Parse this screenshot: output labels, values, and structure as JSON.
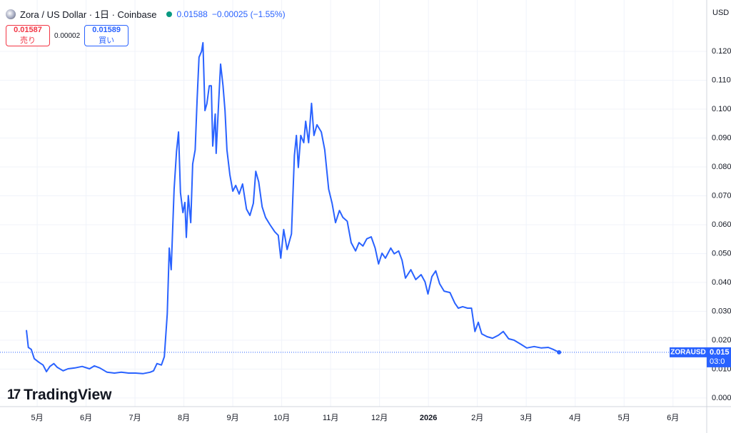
{
  "header": {
    "title": "Zora / US Dollar · 1日 · Coinbase",
    "price": "0.01588",
    "change": "−0.00025 (−1.55%)"
  },
  "trade": {
    "sell_price": "0.01587",
    "sell_label": "売り",
    "spread": "0.00002",
    "buy_price": "0.01589",
    "buy_label": "買い"
  },
  "currency": "USD",
  "price_tag": {
    "symbol": "ZORAUSD",
    "price": "0.015",
    "countdown": "03:0"
  },
  "logo": "TradingView",
  "chart_data": {
    "type": "line",
    "color": "#2962ff",
    "grid": true,
    "xlim": [
      -0.76,
      13.69
    ],
    "ylim": [
      -0.003,
      0.1378
    ],
    "xticks": [
      {
        "value": 0,
        "label": "5月"
      },
      {
        "value": 1,
        "label": "6月"
      },
      {
        "value": 2,
        "label": "7月"
      },
      {
        "value": 3,
        "label": "8月"
      },
      {
        "value": 4,
        "label": "9月"
      },
      {
        "value": 5,
        "label": "10月"
      },
      {
        "value": 6,
        "label": "11月"
      },
      {
        "value": 7,
        "label": "12月"
      },
      {
        "value": 8,
        "label": "2026"
      },
      {
        "value": 9,
        "label": "2月"
      },
      {
        "value": 10,
        "label": "3月"
      },
      {
        "value": 11,
        "label": "4月"
      },
      {
        "value": 12,
        "label": "5月"
      },
      {
        "value": 13,
        "label": "6月"
      }
    ],
    "yticks": [
      {
        "value": 0,
        "label": "0.000"
      },
      {
        "value": 0.01,
        "label": "0.010"
      },
      {
        "value": 0.02,
        "label": "0.020"
      },
      {
        "value": 0.03,
        "label": "0.030"
      },
      {
        "value": 0.04,
        "label": "0.040"
      },
      {
        "value": 0.05,
        "label": "0.050"
      },
      {
        "value": 0.06,
        "label": "0.060"
      },
      {
        "value": 0.07,
        "label": "0.070"
      },
      {
        "value": 0.08,
        "label": "0.080"
      },
      {
        "value": 0.09,
        "label": "0.090"
      },
      {
        "value": 0.1,
        "label": "0.100"
      },
      {
        "value": 0.11,
        "label": "0.110"
      },
      {
        "value": 0.12,
        "label": "0.120"
      }
    ],
    "x": [
      -0.22,
      -0.18,
      -0.12,
      -0.06,
      0.04,
      0.12,
      0.19,
      0.26,
      0.34,
      0.41,
      0.53,
      0.63,
      0.77,
      0.92,
      1.07,
      1.17,
      1.28,
      1.43,
      1.58,
      1.72,
      1.87,
      2.01,
      2.16,
      2.31,
      2.38,
      2.45,
      2.54,
      2.6,
      2.66,
      2.7,
      2.74,
      2.8,
      2.85,
      2.89,
      2.93,
      2.98,
      3.02,
      3.05,
      3.09,
      3.14,
      3.18,
      3.23,
      3.27,
      3.31,
      3.36,
      3.39,
      3.43,
      3.47,
      3.52,
      3.56,
      3.59,
      3.64,
      3.66,
      3.71,
      3.75,
      3.8,
      3.84,
      3.88,
      3.94,
      4.0,
      4.06,
      4.13,
      4.2,
      4.28,
      4.35,
      4.42,
      4.47,
      4.53,
      4.6,
      4.67,
      4.76,
      4.86,
      4.93,
      4.98,
      5.04,
      5.11,
      5.2,
      5.26,
      5.3,
      5.34,
      5.39,
      5.45,
      5.49,
      5.55,
      5.61,
      5.66,
      5.72,
      5.81,
      5.88,
      5.96,
      6.03,
      6.1,
      6.18,
      6.25,
      6.34,
      6.42,
      6.51,
      6.58,
      6.66,
      6.74,
      6.83,
      6.91,
      6.98,
      7.05,
      7.12,
      7.23,
      7.3,
      7.39,
      7.46,
      7.53,
      7.64,
      7.74,
      7.85,
      7.93,
      7.99,
      8.07,
      8.15,
      8.23,
      8.32,
      8.44,
      8.54,
      8.61,
      8.7,
      8.8,
      8.88,
      8.95,
      9.02,
      9.09,
      9.2,
      9.31,
      9.43,
      9.53,
      9.64,
      9.75,
      9.9,
      10.01,
      10.16,
      10.31,
      10.45,
      10.55,
      10.67
    ],
    "values": [
      0.0235,
      0.0175,
      0.0168,
      0.0136,
      0.0123,
      0.0114,
      0.0091,
      0.0109,
      0.0119,
      0.0106,
      0.0094,
      0.0101,
      0.0104,
      0.0109,
      0.0101,
      0.0111,
      0.0104,
      0.0089,
      0.0086,
      0.0089,
      0.0086,
      0.0086,
      0.0084,
      0.0089,
      0.0094,
      0.0119,
      0.0114,
      0.0143,
      0.0291,
      0.0519,
      0.0444,
      0.0723,
      0.0854,
      0.0921,
      0.0711,
      0.0642,
      0.0677,
      0.0556,
      0.0701,
      0.0607,
      0.081,
      0.0859,
      0.1032,
      0.118,
      0.12,
      0.123,
      0.0995,
      0.1019,
      0.1081,
      0.1081,
      0.0872,
      0.0983,
      0.0847,
      0.1019,
      0.1156,
      0.1081,
      0.0995,
      0.0859,
      0.0773,
      0.0716,
      0.0736,
      0.0706,
      0.0741,
      0.0654,
      0.0632,
      0.0674,
      0.0785,
      0.0748,
      0.0662,
      0.0625,
      0.06,
      0.0575,
      0.0563,
      0.0484,
      0.0583,
      0.0514,
      0.0568,
      0.084,
      0.0909,
      0.0798,
      0.0909,
      0.0884,
      0.0958,
      0.0884,
      0.102,
      0.0909,
      0.0946,
      0.0921,
      0.0859,
      0.0723,
      0.0674,
      0.0607,
      0.0649,
      0.0625,
      0.0612,
      0.0538,
      0.0509,
      0.0538,
      0.0526,
      0.0551,
      0.0558,
      0.0519,
      0.0464,
      0.0501,
      0.0484,
      0.0519,
      0.0499,
      0.0509,
      0.0477,
      0.0415,
      0.0444,
      0.041,
      0.0427,
      0.0402,
      0.036,
      0.042,
      0.044,
      0.0395,
      0.037,
      0.0365,
      0.0328,
      0.0311,
      0.0316,
      0.0311,
      0.0311,
      0.023,
      0.0262,
      0.0222,
      0.0212,
      0.0207,
      0.0217,
      0.023,
      0.0205,
      0.02,
      0.0185,
      0.0173,
      0.0178,
      0.0173,
      0.0175,
      0.0168,
      0.0158
    ]
  }
}
